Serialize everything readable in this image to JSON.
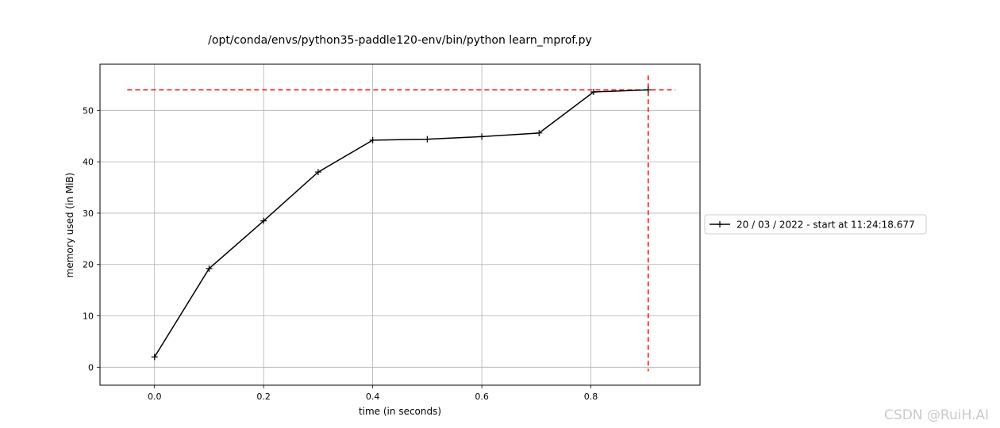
{
  "chart_data": {
    "type": "line",
    "title": "/opt/conda/envs/python35-paddle120-env/bin/python learn_mprof.py",
    "xlabel": "time (in seconds)",
    "ylabel": "memory used (in MiB)",
    "xlim": [
      -0.1,
      1.0
    ],
    "ylim": [
      -3.5,
      59
    ],
    "xticks": [
      0.0,
      0.2,
      0.4,
      0.6,
      0.8
    ],
    "xtick_labels": [
      "0.0",
      "0.2",
      "0.4",
      "0.6",
      "0.8"
    ],
    "yticks": [
      0,
      10,
      20,
      30,
      40,
      50
    ],
    "ytick_labels": [
      "0",
      "10",
      "20",
      "30",
      "40",
      "50"
    ],
    "grid": true,
    "legend_placement": "center-right, outside plot",
    "series": [
      {
        "name": "20 / 03 / 2022 - start at 11:24:18.677",
        "color": "#000000",
        "marker": "plus",
        "x": [
          0.0,
          0.1,
          0.2,
          0.3,
          0.4,
          0.5,
          0.6,
          0.705,
          0.805,
          0.905
        ],
        "y": [
          2.0,
          19.2,
          28.5,
          38.0,
          44.2,
          44.4,
          44.9,
          45.6,
          53.6,
          54.0
        ]
      }
    ],
    "annotations": {
      "max_memory_y": 54.0,
      "max_time_x": 0.905,
      "color": "#ff0000",
      "style": "dashed"
    }
  },
  "watermark": "CSDN @RuiH.AI"
}
